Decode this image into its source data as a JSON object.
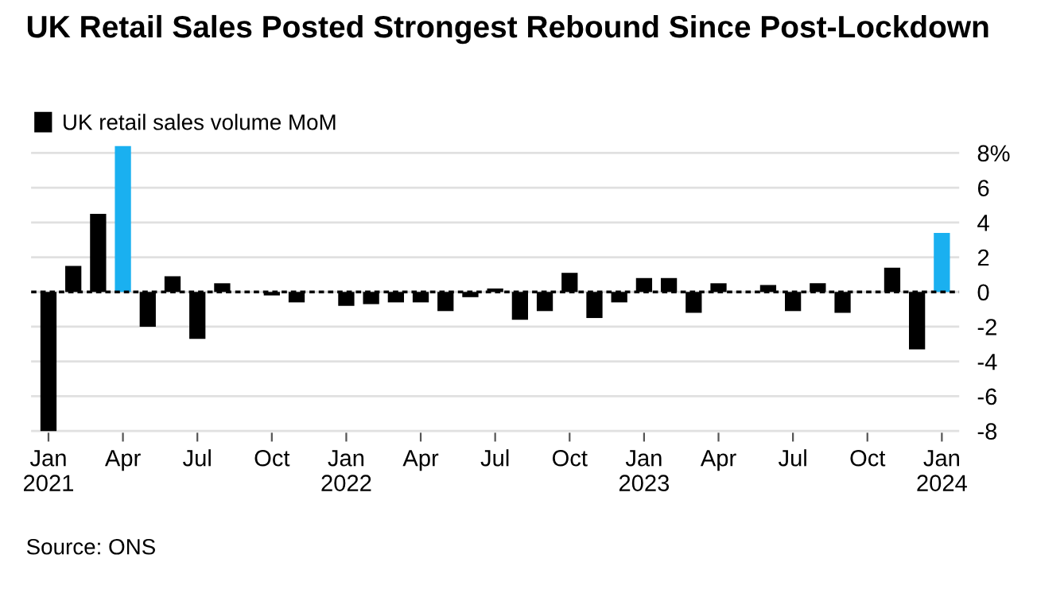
{
  "chart_data": {
    "type": "bar",
    "title": "UK Retail Sales Posted Strongest Rebound Since Post-Lockdown",
    "categories": [
      "Jan\n2021",
      null,
      null,
      "Apr",
      null,
      null,
      "Jul",
      null,
      null,
      "Oct",
      null,
      null,
      "Jan\n2022",
      null,
      null,
      "Apr",
      null,
      null,
      "Jul",
      null,
      null,
      "Oct",
      null,
      null,
      "Jan\n2023",
      null,
      null,
      "Apr",
      null,
      null,
      "Jul",
      null,
      null,
      "Oct",
      null,
      null,
      "Jan\n2024"
    ],
    "series": [
      {
        "name": "UK retail sales volume MoM",
        "color": "#000000",
        "colors": [
          "#000000",
          "#000000",
          "#000000",
          "#1ab0f0",
          "#000000",
          "#000000",
          "#000000",
          "#000000",
          "#000000",
          "#000000",
          "#000000",
          "#000000",
          "#000000",
          "#000000",
          "#000000",
          "#000000",
          "#000000",
          "#000000",
          "#000000",
          "#000000",
          "#000000",
          "#000000",
          "#000000",
          "#000000",
          "#000000",
          "#000000",
          "#000000",
          "#000000",
          "#000000",
          "#000000",
          "#000000",
          "#000000",
          "#000000",
          "#000000",
          "#000000",
          "#000000",
          "#1ab0f0"
        ],
        "values": [
          -8.0,
          1.5,
          4.5,
          8.4,
          -2.0,
          0.9,
          -2.7,
          0.5,
          null,
          -0.2,
          -0.6,
          0.0,
          -0.8,
          -0.7,
          -0.6,
          -0.6,
          -1.1,
          -0.3,
          0.2,
          -1.6,
          -1.1,
          1.1,
          -1.5,
          -0.6,
          0.8,
          0.8,
          -1.2,
          0.5,
          0.0,
          0.4,
          -1.1,
          0.5,
          -1.2,
          0.0,
          1.4,
          -3.3,
          3.4
        ]
      }
    ],
    "ylim": [
      -8.1,
      8.5
    ],
    "yticks": [
      {
        "value": 8,
        "label": "8%"
      },
      6,
      4,
      2,
      0,
      -2,
      -4,
      -6,
      -8
    ],
    "grid": "y",
    "legend": "top left",
    "ref_lines": [
      {
        "axis": "y",
        "value": 0,
        "color": "#000000",
        "line_style": "dashed"
      }
    ],
    "annotations": [
      "Source: ONS"
    ]
  }
}
